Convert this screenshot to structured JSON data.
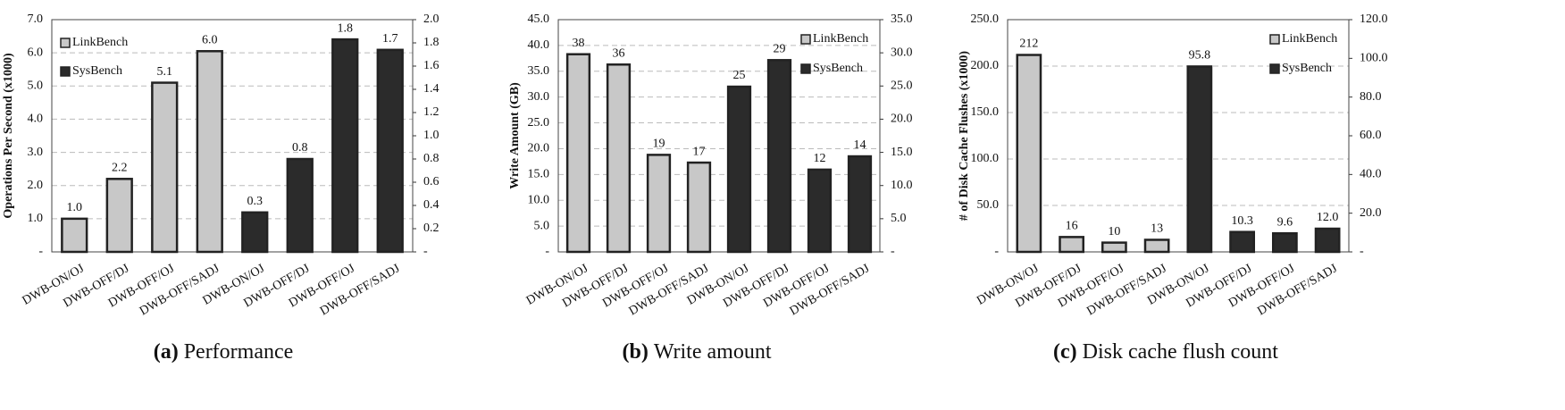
{
  "chart_data": [
    {
      "type": "bar",
      "ylabel": "Operations Per Second (x1000)",
      "caption": {
        "label": "(a)",
        "text": "Performance"
      },
      "categories": [
        "DWB-ON/OJ",
        "DWB-OFF/DJ",
        "DWB-OFF/OJ",
        "DWB-OFF/SADJ",
        "DWB-ON/OJ",
        "DWB-OFF/DJ",
        "DWB-OFF/OJ",
        "DWB-OFF/SADJ"
      ],
      "series": [
        {
          "name": "LinkBench",
          "color": "#c8c8c8",
          "values": [
            1.0,
            2.2,
            5.1,
            6.05,
            null,
            null,
            null,
            null
          ],
          "value_labels": [
            "1.0",
            "2.2",
            "5.1",
            "6.0",
            null,
            null,
            null,
            null
          ]
        },
        {
          "name": "SysBench",
          "color": "#2b2b2b",
          "axis": "y2",
          "values": [
            null,
            null,
            null,
            null,
            0.34,
            0.8,
            1.83,
            1.74
          ],
          "value_labels": [
            null,
            null,
            null,
            null,
            "0.3",
            "0.8",
            "1.8",
            "1.7"
          ]
        }
      ],
      "ylim": [
        0,
        7
      ],
      "yticks": [
        {
          "value": 0,
          "label": "-"
        },
        {
          "value": 1,
          "label": "1.0"
        },
        {
          "value": 2,
          "label": "2.0"
        },
        {
          "value": 3,
          "label": "3.0"
        },
        {
          "value": 4,
          "label": "4.0"
        },
        {
          "value": 5,
          "label": "5.0"
        },
        {
          "value": 6,
          "label": "6.0"
        },
        {
          "value": 7,
          "label": "7.0"
        }
      ],
      "y2lim": [
        0,
        2
      ],
      "y2ticks": [
        {
          "value": 0,
          "label": "-"
        },
        0.2,
        0.4,
        0.6,
        0.8,
        {
          "value": 1,
          "label": "1.0"
        },
        1.2,
        1.4,
        1.6,
        1.8,
        {
          "value": 2,
          "label": "2.0"
        }
      ],
      "grid": true,
      "legend": "top-left"
    },
    {
      "type": "bar",
      "ylabel": "Write Amount (GB)",
      "caption": {
        "label": "(b)",
        "text": "Write amount"
      },
      "categories": [
        "DWB-ON/OJ",
        "DWB-OFF/DJ",
        "DWB-OFF/OJ",
        "DWB-OFF/SADJ",
        "DWB-ON/OJ",
        "DWB-OFF/DJ",
        "DWB-OFF/OJ",
        "DWB-OFF/SADJ"
      ],
      "series": [
        {
          "name": "LinkBench",
          "color": "#c8c8c8",
          "values": [
            38.3,
            36.3,
            18.8,
            17.3,
            null,
            null,
            null,
            null
          ],
          "value_labels": [
            "38",
            "36",
            "19",
            "17",
            null,
            null,
            null,
            null
          ]
        },
        {
          "name": "SysBench",
          "color": "#2b2b2b",
          "axis": "y2",
          "values": [
            null,
            null,
            null,
            null,
            24.9,
            28.9,
            12.4,
            14.4
          ],
          "value_labels": [
            null,
            null,
            null,
            null,
            "25",
            "29",
            "12",
            "14"
          ]
        }
      ],
      "ylim": [
        0,
        45
      ],
      "yticks": [
        {
          "value": 0,
          "label": "-"
        },
        {
          "value": 5,
          "label": "5.0"
        },
        {
          "value": 10,
          "label": "10.0"
        },
        {
          "value": 15,
          "label": "15.0"
        },
        {
          "value": 20,
          "label": "20.0"
        },
        {
          "value": 25,
          "label": "25.0"
        },
        {
          "value": 30,
          "label": "30.0"
        },
        {
          "value": 35,
          "label": "35.0"
        },
        {
          "value": 40,
          "label": "40.0"
        },
        {
          "value": 45,
          "label": "45.0"
        }
      ],
      "y2lim": [
        0,
        35
      ],
      "y2ticks": [
        {
          "value": 0,
          "label": "-"
        },
        {
          "value": 5,
          "label": "5.0"
        },
        {
          "value": 10,
          "label": "10.0"
        },
        {
          "value": 15,
          "label": "15.0"
        },
        {
          "value": 20,
          "label": "20.0"
        },
        {
          "value": 25,
          "label": "25.0"
        },
        {
          "value": 30,
          "label": "30.0"
        },
        {
          "value": 35,
          "label": "35.0"
        }
      ],
      "grid": true,
      "legend": "top-right"
    },
    {
      "type": "bar",
      "ylabel": "# of Disk Cache Flushes (x1000)",
      "caption": {
        "label": "(c)",
        "text": "Disk cache flush count"
      },
      "categories": [
        "DWB-ON/OJ",
        "DWB-OFF/DJ",
        "DWB-OFF/OJ",
        "DWB-OFF/SADJ",
        "DWB-ON/OJ",
        "DWB-OFF/DJ",
        "DWB-OFF/OJ",
        "DWB-OFF/SADJ"
      ],
      "series": [
        {
          "name": "LinkBench",
          "color": "#c8c8c8",
          "values": [
            212,
            16,
            10,
            13,
            null,
            null,
            null,
            null
          ],
          "value_labels": [
            "212",
            "16",
            "10",
            "13",
            null,
            null,
            null,
            null
          ]
        },
        {
          "name": "SysBench",
          "color": "#2b2b2b",
          "axis": "y2",
          "values": [
            null,
            null,
            null,
            null,
            95.8,
            10.3,
            9.6,
            12.0
          ],
          "value_labels": [
            null,
            null,
            null,
            null,
            "95.8",
            "10.3",
            "9.6",
            "12.0"
          ]
        }
      ],
      "ylim": [
        0,
        250
      ],
      "yticks": [
        {
          "value": 0,
          "label": "-"
        },
        {
          "value": 50,
          "label": "50.0"
        },
        {
          "value": 100,
          "label": "100.0"
        },
        {
          "value": 150,
          "label": "150.0"
        },
        {
          "value": 200,
          "label": "200.0"
        },
        {
          "value": 250,
          "label": "250.0"
        }
      ],
      "y2lim": [
        0,
        120
      ],
      "y2ticks": [
        {
          "value": 0,
          "label": "-"
        },
        {
          "value": 20,
          "label": "20.0"
        },
        {
          "value": 40,
          "label": "40.0"
        },
        {
          "value": 60,
          "label": "60.0"
        },
        {
          "value": 80,
          "label": "80.0"
        },
        {
          "value": 100,
          "label": "100.0"
        },
        {
          "value": 120,
          "label": "120.0"
        }
      ],
      "grid": true,
      "legend": "top-right"
    }
  ]
}
